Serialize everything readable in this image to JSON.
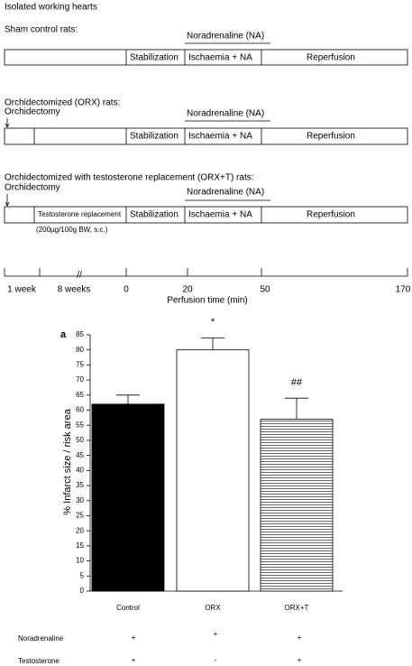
{
  "diagram": {
    "title": "Isolated working hearts",
    "groups": [
      {
        "label": "Sham control rats:",
        "drug": "Noradrenaline (NA)",
        "phases": [
          "Stabilization",
          "Ischaemia + NA",
          "Reperfusion"
        ]
      },
      {
        "label": "Orchidectomized (ORX) rats:",
        "surgery": "Orchidectomy",
        "drug": "Noradrenaline (NA)",
        "phases": [
          "Stabilization",
          "Ischaemia + NA",
          "Reperfusion"
        ]
      },
      {
        "label": "Orchidectomized with testosterone replacement (ORX+T) rats:",
        "surgery": "Orchidectomy",
        "drug": "Noradrenaline (NA)",
        "phases": [
          "Testosterone replacement",
          "Stabilization",
          "Ischaemia + NA",
          "Reperfusion"
        ],
        "dose": "(200µg/100g BW, s.c.)"
      }
    ],
    "timeline": {
      "labels": [
        "1 week",
        "8 weeks",
        "0",
        "20",
        "50",
        "170"
      ],
      "break": "//",
      "axis_label": "Perfusion time (min)"
    }
  },
  "chart_data": {
    "type": "bar",
    "panel": "a",
    "ylabel": "% Infarct size / risk area",
    "categories": [
      "Control",
      "ORX",
      "ORX+T"
    ],
    "values": [
      62,
      80,
      57
    ],
    "errors": [
      3,
      4,
      7
    ],
    "colors": [
      "#000000",
      "#ffffff",
      "#ffffff"
    ],
    "hatched": [
      false,
      false,
      true
    ],
    "annotations": [
      {
        "category": "ORX",
        "text": "*"
      },
      {
        "category": "ORX+T",
        "text": "##"
      }
    ],
    "ylim": [
      0,
      85
    ],
    "yticks": [
      0,
      5,
      10,
      15,
      20,
      25,
      30,
      35,
      40,
      45,
      50,
      55,
      60,
      65,
      70,
      75,
      80,
      85
    ]
  },
  "table": {
    "rows": [
      {
        "label": "Noradrenaline",
        "marks": [
          "+",
          "+",
          "+"
        ]
      },
      {
        "label": "Testosterone",
        "marks": [
          "+",
          "-",
          "+"
        ]
      }
    ]
  }
}
